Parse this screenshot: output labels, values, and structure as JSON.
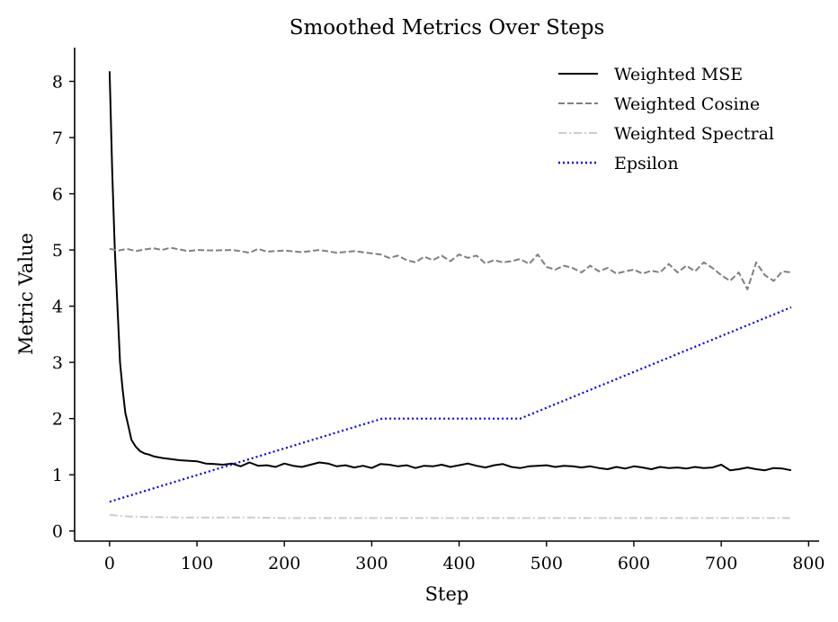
{
  "chart_data": {
    "type": "line",
    "title": "Smoothed Metrics Over Steps",
    "xlabel": "Step",
    "ylabel": "Metric Value",
    "xlim": [
      -40,
      812
    ],
    "ylim": [
      -0.18,
      8.6
    ],
    "xticks": [
      0,
      100,
      200,
      300,
      400,
      500,
      600,
      700,
      800
    ],
    "yticks": [
      0,
      1,
      2,
      3,
      4,
      5,
      6,
      7,
      8
    ],
    "grid": false,
    "legend_position": "top-right",
    "series": [
      {
        "name": "Weighted MSE",
        "color": "#000000",
        "style": "solid",
        "x": [
          0,
          3,
          6,
          9,
          12,
          15,
          18,
          21,
          25,
          30,
          35,
          40,
          45,
          50,
          60,
          70,
          80,
          90,
          100,
          110,
          120,
          130,
          140,
          150,
          160,
          170,
          180,
          190,
          200,
          210,
          220,
          230,
          240,
          250,
          260,
          270,
          280,
          290,
          300,
          310,
          320,
          330,
          340,
          350,
          360,
          370,
          380,
          390,
          400,
          410,
          420,
          430,
          440,
          450,
          460,
          470,
          480,
          490,
          500,
          510,
          520,
          530,
          540,
          550,
          560,
          570,
          580,
          590,
          600,
          610,
          620,
          630,
          640,
          650,
          660,
          670,
          680,
          690,
          700,
          710,
          720,
          730,
          740,
          750,
          760,
          770,
          780
        ],
        "values": [
          8.18,
          6.4,
          5.0,
          4.0,
          3.0,
          2.5,
          2.1,
          1.9,
          1.62,
          1.5,
          1.42,
          1.38,
          1.36,
          1.33,
          1.3,
          1.28,
          1.26,
          1.25,
          1.24,
          1.2,
          1.19,
          1.18,
          1.2,
          1.15,
          1.22,
          1.16,
          1.17,
          1.14,
          1.2,
          1.16,
          1.14,
          1.18,
          1.22,
          1.2,
          1.15,
          1.17,
          1.13,
          1.16,
          1.12,
          1.19,
          1.18,
          1.15,
          1.17,
          1.12,
          1.16,
          1.15,
          1.18,
          1.14,
          1.17,
          1.2,
          1.16,
          1.13,
          1.17,
          1.19,
          1.14,
          1.12,
          1.15,
          1.16,
          1.17,
          1.14,
          1.16,
          1.15,
          1.13,
          1.15,
          1.12,
          1.1,
          1.14,
          1.11,
          1.15,
          1.13,
          1.1,
          1.14,
          1.12,
          1.13,
          1.11,
          1.14,
          1.12,
          1.13,
          1.18,
          1.08,
          1.1,
          1.13,
          1.1,
          1.08,
          1.12,
          1.11,
          1.08
        ]
      },
      {
        "name": "Weighted Cosine",
        "color": "#808080",
        "style": "dashed",
        "x": [
          0,
          10,
          20,
          30,
          40,
          50,
          60,
          70,
          80,
          90,
          100,
          120,
          140,
          150,
          160,
          170,
          180,
          200,
          220,
          240,
          260,
          280,
          300,
          310,
          320,
          330,
          340,
          350,
          360,
          370,
          380,
          390,
          400,
          410,
          420,
          430,
          440,
          450,
          460,
          470,
          480,
          490,
          500,
          510,
          520,
          530,
          540,
          550,
          560,
          570,
          580,
          590,
          600,
          610,
          620,
          630,
          640,
          650,
          660,
          670,
          680,
          690,
          700,
          710,
          720,
          730,
          740,
          750,
          760,
          770,
          780
        ],
        "values": [
          5.02,
          4.99,
          5.02,
          4.98,
          5.01,
          5.03,
          5.0,
          5.04,
          5.01,
          4.98,
          5.0,
          4.99,
          5.0,
          4.98,
          4.95,
          5.02,
          4.97,
          4.99,
          4.96,
          5.0,
          4.95,
          4.98,
          4.94,
          4.92,
          4.86,
          4.9,
          4.82,
          4.78,
          4.88,
          4.82,
          4.9,
          4.8,
          4.92,
          4.86,
          4.9,
          4.76,
          4.82,
          4.78,
          4.8,
          4.84,
          4.75,
          4.92,
          4.7,
          4.65,
          4.72,
          4.68,
          4.6,
          4.72,
          4.62,
          4.68,
          4.58,
          4.62,
          4.65,
          4.58,
          4.63,
          4.6,
          4.75,
          4.6,
          4.72,
          4.62,
          4.78,
          4.68,
          4.55,
          4.45,
          4.6,
          4.3,
          4.78,
          4.55,
          4.45,
          4.62,
          4.6
        ]
      },
      {
        "name": "Weighted Spectral",
        "color": "#cccccc",
        "style": "dashdot",
        "x": [
          0,
          10,
          20,
          40,
          80,
          120,
          160,
          200,
          300,
          400,
          500,
          600,
          700,
          780
        ],
        "values": [
          0.29,
          0.27,
          0.26,
          0.25,
          0.24,
          0.24,
          0.24,
          0.23,
          0.23,
          0.23,
          0.23,
          0.23,
          0.23,
          0.23
        ]
      },
      {
        "name": "Epsilon",
        "color": "#0000ee",
        "style": "dotted",
        "x": [
          0,
          312,
          470,
          780
        ],
        "values": [
          0.52,
          2.0,
          2.0,
          3.98
        ]
      }
    ]
  }
}
